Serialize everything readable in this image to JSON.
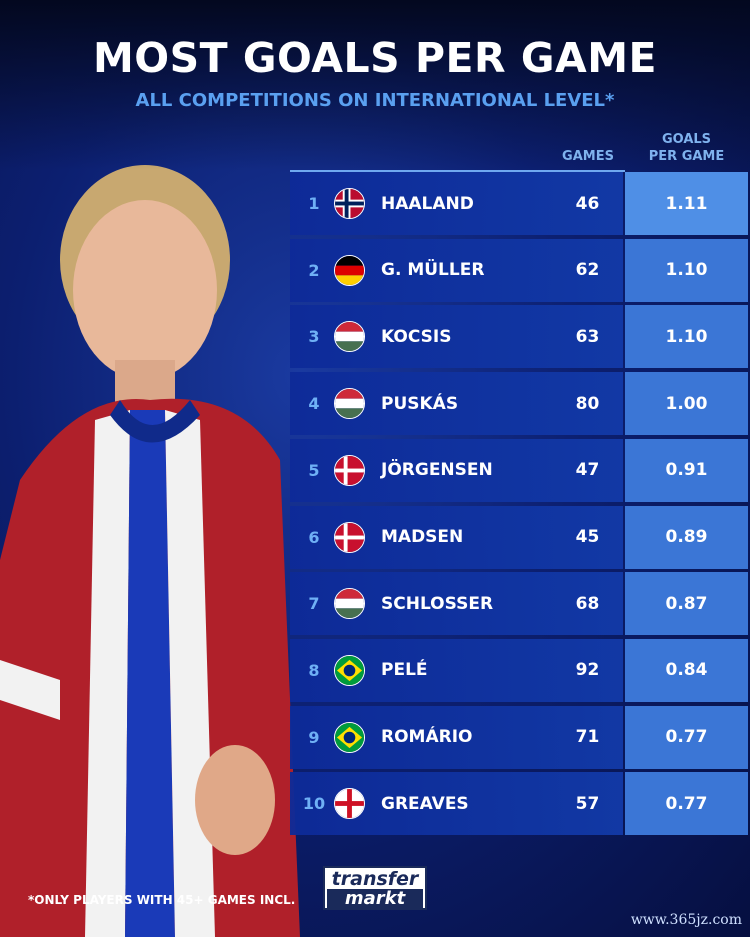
{
  "header": {
    "title": "MOST GOALS PER GAME",
    "subtitle": "ALL COMPETITIONS ON INTERNATIONAL LEVEL*"
  },
  "chart_data": {
    "type": "table",
    "columns": [
      "",
      "",
      "GAMES",
      "GOALS PER GAME"
    ],
    "header_games": "GAMES",
    "header_gpg_1": "GOALS",
    "header_gpg_2": "PER GAME",
    "rows": [
      {
        "rank": "1",
        "flag": "norway",
        "name": "HAALAND",
        "games": "46",
        "gpg": "1.11"
      },
      {
        "rank": "2",
        "flag": "germany",
        "name": "G. MÜLLER",
        "games": "62",
        "gpg": "1.10"
      },
      {
        "rank": "3",
        "flag": "hungary",
        "name": "KOCSIS",
        "games": "63",
        "gpg": "1.10"
      },
      {
        "rank": "4",
        "flag": "hungary",
        "name": "PUSKÁS",
        "games": "80",
        "gpg": "1.00"
      },
      {
        "rank": "5",
        "flag": "denmark",
        "name": "JÖRGENSEN",
        "games": "47",
        "gpg": "0.91"
      },
      {
        "rank": "6",
        "flag": "denmark",
        "name": "MADSEN",
        "games": "45",
        "gpg": "0.89"
      },
      {
        "rank": "7",
        "flag": "hungary",
        "name": "SCHLOSSER",
        "games": "68",
        "gpg": "0.87"
      },
      {
        "rank": "8",
        "flag": "brazil",
        "name": "PELÉ",
        "games": "92",
        "gpg": "0.84"
      },
      {
        "rank": "9",
        "flag": "brazil",
        "name": "ROMÁRIO",
        "games": "71",
        "gpg": "0.77"
      },
      {
        "rank": "10",
        "flag": "england",
        "name": "GREAVES",
        "games": "57",
        "gpg": "0.77"
      }
    ]
  },
  "footer": {
    "note": "*ONLY PLAYERS WITH 45+ GAMES INCL.",
    "logo_1": "transfer",
    "logo_2": "markt",
    "watermark": "www.365jz.com"
  },
  "colors": {
    "accent": "#4f8fe6",
    "row": "#0d2a98",
    "subtitle": "#5aa0f0"
  }
}
